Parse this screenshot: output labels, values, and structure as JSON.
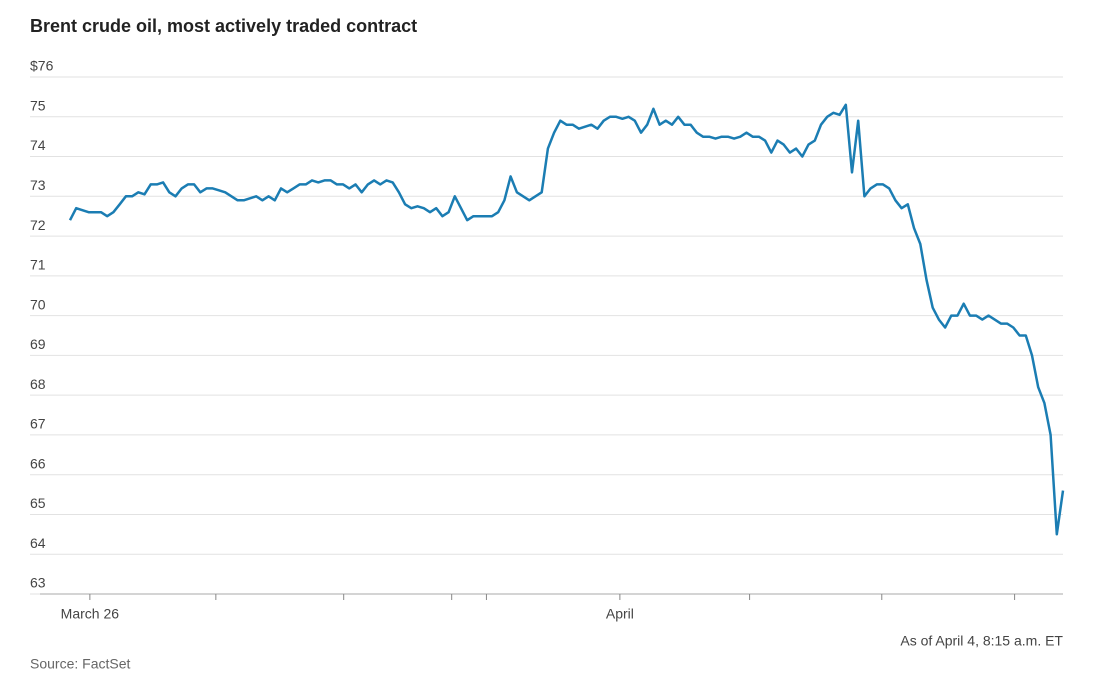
{
  "chart_data": {
    "type": "line",
    "title": "Brent crude oil, most actively traded contract",
    "note": "As of April 4, 8:15 a.m. ET",
    "source": "Source: FactSet",
    "color": "#1b7db3",
    "grid": true,
    "xlim": [
      0,
      160
    ],
    "xticks": [
      {
        "value": 3.2,
        "label": "March 26"
      },
      {
        "value": 23.5,
        "label": null
      },
      {
        "value": 44.1,
        "label": null
      },
      {
        "value": 61.5,
        "label": null
      },
      {
        "value": 67.1,
        "label": null
      },
      {
        "value": 88.6,
        "label": "April"
      },
      {
        "value": 109.5,
        "label": null
      },
      {
        "value": 130.8,
        "label": null
      },
      {
        "value": 152.2,
        "label": null
      }
    ],
    "ylim": [
      63,
      76
    ],
    "yticks": [
      {
        "value": 76,
        "label": "$76"
      },
      75,
      74,
      73,
      72,
      71,
      70,
      69,
      68,
      67,
      66,
      65,
      64,
      63
    ],
    "values": [
      72.4,
      72.7,
      72.65,
      72.6,
      72.6,
      72.6,
      72.5,
      72.6,
      72.8,
      73.0,
      73.0,
      73.1,
      73.05,
      73.3,
      73.3,
      73.35,
      73.1,
      73.0,
      73.2,
      73.3,
      73.3,
      73.1,
      73.2,
      73.2,
      73.15,
      73.1,
      73.0,
      72.9,
      72.9,
      72.95,
      73.0,
      72.9,
      73.0,
      72.9,
      73.2,
      73.1,
      73.2,
      73.3,
      73.3,
      73.4,
      73.35,
      73.4,
      73.4,
      73.3,
      73.3,
      73.2,
      73.3,
      73.1,
      73.3,
      73.4,
      73.3,
      73.4,
      73.35,
      73.1,
      72.8,
      72.7,
      72.75,
      72.7,
      72.6,
      72.7,
      72.5,
      72.6,
      73.0,
      72.7,
      72.4,
      72.5,
      72.5,
      72.5,
      72.5,
      72.6,
      72.9,
      73.5,
      73.1,
      73.0,
      72.9,
      73.0,
      73.1,
      74.2,
      74.6,
      74.9,
      74.8,
      74.8,
      74.7,
      74.75,
      74.8,
      74.7,
      74.9,
      75.0,
      75.0,
      74.95,
      75.0,
      74.9,
      74.6,
      74.8,
      75.2,
      74.8,
      74.9,
      74.8,
      75.0,
      74.8,
      74.8,
      74.6,
      74.5,
      74.5,
      74.45,
      74.5,
      74.5,
      74.45,
      74.5,
      74.6,
      74.5,
      74.5,
      74.4,
      74.1,
      74.4,
      74.3,
      74.1,
      74.2,
      74.0,
      74.3,
      74.4,
      74.8,
      75.0,
      75.1,
      75.05,
      75.3,
      73.6,
      74.9,
      73.0,
      73.2,
      73.3,
      73.3,
      73.2,
      72.9,
      72.7,
      72.8,
      72.2,
      71.8,
      70.9,
      70.2,
      69.9,
      69.7,
      70.0,
      70.0,
      70.3,
      70.0,
      70.0,
      69.9,
      70.0,
      69.9,
      69.8,
      69.8,
      69.7,
      69.5,
      69.5,
      69.0,
      68.2,
      67.8,
      67.0,
      64.5,
      65.6
    ]
  }
}
